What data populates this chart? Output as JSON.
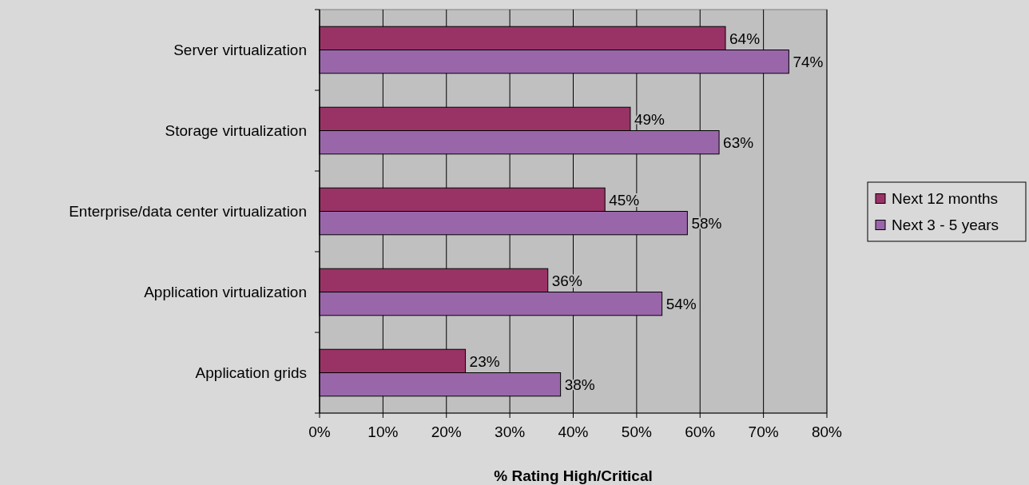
{
  "chart_data": {
    "type": "bar",
    "orientation": "horizontal",
    "xlabel": "% Rating High/Critical",
    "categories": [
      "Server virtualization",
      "Storage virtualization",
      "Enterprise/data center virtualization",
      "Application virtualization",
      "Application grids"
    ],
    "series": [
      {
        "name": "Next 12 months",
        "color": "#993366",
        "values": [
          64,
          49,
          45,
          36,
          23
        ],
        "value_labels": [
          "64%",
          "49%",
          "45%",
          "36%",
          "23%"
        ]
      },
      {
        "name": "Next 3 - 5 years",
        "color": "#9966aa",
        "values": [
          74,
          63,
          58,
          54,
          38
        ],
        "value_labels": [
          "74%",
          "63%",
          "58%",
          "54%",
          "38%"
        ]
      }
    ],
    "xlim": [
      0,
      80
    ],
    "xticks": [
      {
        "value": 0,
        "label": "0%"
      },
      {
        "value": 10,
        "label": "10%"
      },
      {
        "value": 20,
        "label": "20%"
      },
      {
        "value": 30,
        "label": "30%"
      },
      {
        "value": 40,
        "label": "40%"
      },
      {
        "value": 50,
        "label": "50%"
      },
      {
        "value": 60,
        "label": "60%"
      },
      {
        "value": 70,
        "label": "70%"
      },
      {
        "value": 80,
        "label": "80%"
      }
    ],
    "grid": "x",
    "legend": "right"
  }
}
